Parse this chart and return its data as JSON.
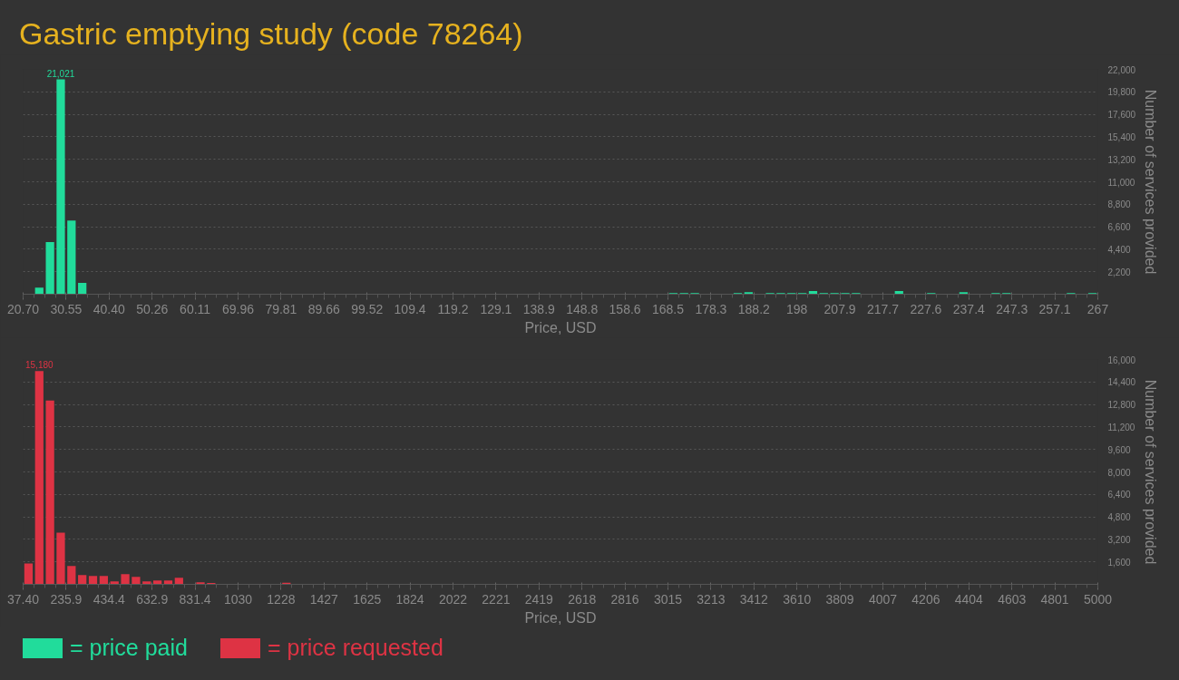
{
  "chart_data": [
    {
      "type": "histogram",
      "title": "Gastric emptying study (code 78264)",
      "xlabel": "Price, USD",
      "ylabel": "Number of services provided",
      "grid": "y",
      "legend": "bottom left",
      "bins": [
        20.7,
        23.163,
        25.626,
        28.089,
        30.552,
        33.015,
        35.478,
        37.941,
        40.404,
        42.867,
        45.33,
        47.793,
        50.256,
        52.719,
        55.182,
        57.645,
        60.108,
        62.571,
        65.034,
        67.497,
        69.96,
        72.423,
        74.886,
        77.349,
        79.812,
        82.275,
        84.738,
        87.201,
        89.664,
        92.127,
        94.59,
        97.053,
        99.516,
        101.979,
        104.442,
        106.905,
        109.368,
        111.831,
        114.294,
        116.757,
        119.22,
        121.683,
        124.146,
        126.609,
        129.072,
        131.535,
        133.998,
        136.461,
        138.924,
        141.387,
        143.85,
        146.313,
        148.776,
        151.239,
        153.702,
        156.165,
        158.628,
        161.091,
        163.554,
        166.017,
        168.48,
        170.943,
        173.406,
        175.869,
        178.332,
        180.795,
        183.258,
        185.721,
        188.184,
        190.647,
        193.11,
        195.573,
        198.036,
        200.499,
        202.962,
        205.425,
        207.888,
        210.351,
        212.814,
        215.277,
        217.74,
        220.203,
        222.666,
        225.129,
        227.592,
        230.055,
        232.518,
        234.981,
        237.444,
        239.907,
        242.37,
        244.833,
        247.296,
        249.759,
        252.222,
        254.685,
        257.148,
        259.611,
        262.074,
        264.537,
        267.0
      ],
      "series": [
        {
          "name": "= price paid",
          "color": "#21dc9b",
          "values": [
            50,
            650,
            5100,
            21021,
            7200,
            1100,
            0,
            0,
            50,
            0,
            0,
            0,
            0,
            0,
            0,
            0,
            0,
            0,
            0,
            0,
            50,
            0,
            0,
            50,
            0,
            0,
            0,
            0,
            0,
            0,
            0,
            0,
            0,
            0,
            0,
            0,
            0,
            50,
            0,
            0,
            0,
            0,
            50,
            0,
            0,
            0,
            0,
            0,
            0,
            0,
            0,
            50,
            0,
            0,
            50,
            0,
            0,
            50,
            0,
            50,
            100,
            100,
            100,
            50,
            50,
            50,
            100,
            200,
            50,
            100,
            100,
            100,
            100,
            300,
            100,
            100,
            100,
            100,
            50,
            50,
            50,
            300,
            50,
            50,
            100,
            50,
            0,
            200,
            50,
            50,
            100,
            100,
            50,
            50,
            50,
            0,
            50,
            100,
            0,
            100
          ],
          "value_labels": [
            null,
            null,
            null,
            "21,021",
            null,
            null,
            null,
            null,
            null,
            null,
            null,
            null,
            null,
            null,
            null,
            null,
            null,
            null,
            null,
            null,
            null,
            null,
            null,
            null,
            null,
            null,
            null,
            null,
            null,
            null,
            null,
            null,
            null,
            null,
            null,
            null,
            null,
            null,
            null,
            null,
            null,
            null,
            null,
            null,
            null,
            null,
            null,
            null,
            null,
            null,
            null,
            null,
            null,
            null,
            null,
            null,
            null,
            null,
            null,
            null,
            null,
            null,
            null,
            null,
            null,
            null,
            null,
            null,
            null,
            null,
            null,
            null,
            null,
            null,
            null,
            null,
            null,
            null,
            null,
            null,
            null,
            null,
            null,
            null,
            null,
            null,
            null,
            null,
            null,
            null,
            null,
            null,
            null,
            null,
            null,
            null,
            null,
            null,
            null,
            null
          ]
        }
      ],
      "xlim": [
        20.7,
        267.0
      ],
      "ylim": [
        0,
        22000
      ],
      "xticks": [
        {
          "value": 20.7,
          "label": "20.70"
        },
        {
          "value": 30.552,
          "label": "30.55"
        },
        {
          "value": 40.404,
          "label": "40.40"
        },
        {
          "value": 50.256,
          "label": "50.26"
        },
        {
          "value": 60.108,
          "label": "60.11"
        },
        {
          "value": 69.96,
          "label": "69.96"
        },
        {
          "value": 79.812,
          "label": "79.81"
        },
        {
          "value": 89.664,
          "label": "89.66"
        },
        {
          "value": 99.516,
          "label": "99.52"
        },
        {
          "value": 109.368,
          "label": "109.4"
        },
        {
          "value": 119.22,
          "label": "119.2"
        },
        {
          "value": 129.072,
          "label": "129.1"
        },
        {
          "value": 138.924,
          "label": "138.9"
        },
        {
          "value": 148.776,
          "label": "148.8"
        },
        {
          "value": 158.628,
          "label": "158.6"
        },
        {
          "value": 168.48,
          "label": "168.5"
        },
        {
          "value": 178.332,
          "label": "178.3"
        },
        {
          "value": 188.184,
          "label": "188.2"
        },
        {
          "value": 198.036,
          "label": "198"
        },
        {
          "value": 207.888,
          "label": "207.9"
        },
        {
          "value": 217.74,
          "label": "217.7"
        },
        {
          "value": 227.592,
          "label": "227.6"
        },
        {
          "value": 237.444,
          "label": "237.4"
        },
        {
          "value": 247.296,
          "label": "247.3"
        },
        {
          "value": 257.148,
          "label": "257.1"
        },
        {
          "value": 267.0,
          "label": "267"
        }
      ],
      "yticks": [
        {
          "value": 2200,
          "label": "2,200"
        },
        {
          "value": 4400,
          "label": "4,400"
        },
        {
          "value": 6600,
          "label": "6,600"
        },
        {
          "value": 8800,
          "label": "8,800"
        },
        {
          "value": 11000,
          "label": "11,000"
        },
        {
          "value": 13200,
          "label": "13,200"
        },
        {
          "value": 15400,
          "label": "15,400"
        },
        {
          "value": 17600,
          "label": "17,600"
        },
        {
          "value": 19800,
          "label": "19,800"
        },
        {
          "value": 22000,
          "label": "22,000"
        }
      ]
    },
    {
      "type": "histogram",
      "xlabel": "Price, USD",
      "ylabel": "Number of services provided",
      "grid": "y",
      "legend": "bottom left",
      "bins": [
        37.4,
        87.026,
        136.652,
        186.278,
        235.904,
        285.53,
        335.156,
        384.782,
        434.408,
        484.034,
        533.66,
        583.286,
        632.912,
        682.538,
        732.164,
        781.79,
        831.416,
        881.042,
        930.668,
        980.294,
        1029.92,
        1079.546,
        1129.172,
        1178.798,
        1228.424,
        1278.05,
        1327.676,
        1377.302,
        1426.928,
        1476.554,
        1526.18,
        1575.806,
        1625.432,
        1675.058,
        1724.684,
        1774.31,
        1823.936,
        1873.562,
        1923.188,
        1972.814,
        2022.44,
        2072.066,
        2121.692,
        2171.318,
        2220.944,
        2270.57,
        2320.196,
        2369.822,
        2419.448,
        2469.074,
        2518.7,
        2568.326,
        2617.952,
        2667.578,
        2717.204,
        2766.83,
        2816.456,
        2866.082,
        2915.708,
        2965.334,
        3014.96,
        3064.586,
        3114.212,
        3163.838,
        3213.464,
        3263.09,
        3312.716,
        3362.342,
        3411.968,
        3461.594,
        3511.22,
        3560.846,
        3610.472,
        3660.098,
        3709.724,
        3759.35,
        3808.976,
        3858.602,
        3908.228,
        3957.854,
        4007.48,
        4057.106,
        4106.732,
        4156.358,
        4205.984,
        4255.61,
        4305.236,
        4354.862,
        4404.488,
        4454.114,
        4503.74,
        4553.366,
        4602.992,
        4652.618,
        4702.244,
        4751.87,
        4801.496,
        4851.122,
        4900.748,
        4950.374,
        5000.0
      ],
      "series": [
        {
          "name": "= price requested",
          "color": "#de3344",
          "values": [
            1490,
            15180,
            13080,
            3670,
            1300,
            660,
            600,
            600,
            210,
            720,
            530,
            210,
            280,
            280,
            470,
            40,
            150,
            90,
            40,
            40,
            40,
            40,
            40,
            40,
            110,
            0,
            0,
            0,
            0,
            0,
            0,
            0,
            0,
            40,
            0,
            0,
            0,
            0,
            0,
            0,
            0,
            0,
            0,
            0,
            0,
            0,
            0,
            0,
            0,
            0,
            0,
            0,
            0,
            0,
            0,
            0,
            0,
            0,
            0,
            0,
            0,
            0,
            0,
            0,
            0,
            0,
            0,
            0,
            0,
            0,
            0,
            0,
            0,
            0,
            0,
            0,
            0,
            0,
            0,
            0,
            0,
            0,
            0,
            0,
            0,
            0,
            0,
            0,
            0,
            0,
            0,
            0,
            0,
            0,
            0,
            0,
            0,
            0,
            0,
            40
          ],
          "value_labels": [
            null,
            "15,180",
            null,
            null,
            null,
            null,
            null,
            null,
            null,
            null,
            null,
            null,
            null,
            null,
            null,
            null,
            null,
            null,
            null,
            null,
            null,
            null,
            null,
            null,
            null,
            null,
            null,
            null,
            null,
            null,
            null,
            null,
            null,
            null,
            null,
            null,
            null,
            null,
            null,
            null,
            null,
            null,
            null,
            null,
            null,
            null,
            null,
            null,
            null,
            null,
            null,
            null,
            null,
            null,
            null,
            null,
            null,
            null,
            null,
            null,
            null,
            null,
            null,
            null,
            null,
            null,
            null,
            null,
            null,
            null,
            null,
            null,
            null,
            null,
            null,
            null,
            null,
            null,
            null,
            null,
            null,
            null,
            null,
            null,
            null,
            null,
            null,
            null,
            null,
            null,
            null,
            null,
            null,
            null,
            null,
            null,
            null,
            null,
            null,
            null
          ]
        }
      ],
      "xlim": [
        37.4,
        5000.0
      ],
      "ylim": [
        0,
        16000
      ],
      "xticks": [
        {
          "value": 37.4,
          "label": "37.40"
        },
        {
          "value": 235.904,
          "label": "235.9"
        },
        {
          "value": 434.408,
          "label": "434.4"
        },
        {
          "value": 632.912,
          "label": "632.9"
        },
        {
          "value": 831.416,
          "label": "831.4"
        },
        {
          "value": 1029.92,
          "label": "1030"
        },
        {
          "value": 1228.424,
          "label": "1228"
        },
        {
          "value": 1426.928,
          "label": "1427"
        },
        {
          "value": 1625.432,
          "label": "1625"
        },
        {
          "value": 1823.936,
          "label": "1824"
        },
        {
          "value": 2022.44,
          "label": "2022"
        },
        {
          "value": 2220.944,
          "label": "2221"
        },
        {
          "value": 2419.448,
          "label": "2419"
        },
        {
          "value": 2617.952,
          "label": "2618"
        },
        {
          "value": 2816.456,
          "label": "2816"
        },
        {
          "value": 3014.96,
          "label": "3015"
        },
        {
          "value": 3213.464,
          "label": "3213"
        },
        {
          "value": 3411.968,
          "label": "3412"
        },
        {
          "value": 3610.472,
          "label": "3610"
        },
        {
          "value": 3808.976,
          "label": "3809"
        },
        {
          "value": 4007.48,
          "label": "4007"
        },
        {
          "value": 4205.984,
          "label": "4206"
        },
        {
          "value": 4404.488,
          "label": "4404"
        },
        {
          "value": 4602.992,
          "label": "4603"
        },
        {
          "value": 4801.496,
          "label": "4801"
        },
        {
          "value": 5000.0,
          "label": "5000"
        }
      ],
      "yticks": [
        {
          "value": 1600,
          "label": "1,600"
        },
        {
          "value": 3200,
          "label": "3,200"
        },
        {
          "value": 4800,
          "label": "4,800"
        },
        {
          "value": 6400,
          "label": "6,400"
        },
        {
          "value": 8000,
          "label": "8,000"
        },
        {
          "value": 9600,
          "label": "9,600"
        },
        {
          "value": 11200,
          "label": "11,200"
        },
        {
          "value": 12800,
          "label": "12,800"
        },
        {
          "value": 14400,
          "label": "14,400"
        },
        {
          "value": 16000,
          "label": "16,000"
        }
      ]
    }
  ]
}
